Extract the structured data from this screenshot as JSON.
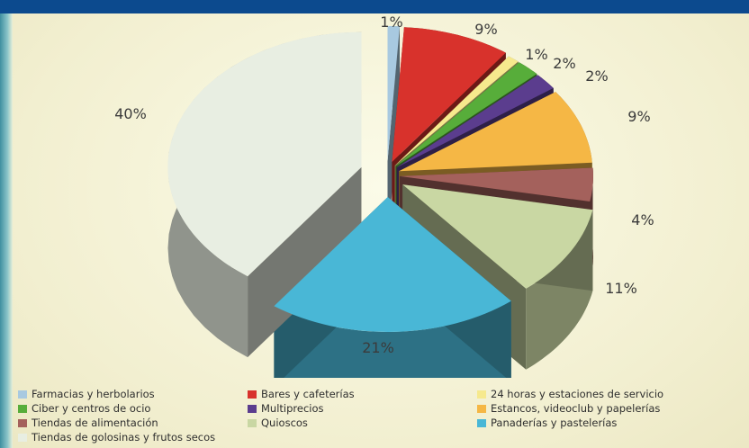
{
  "chart_data": {
    "type": "pie",
    "title": "",
    "slices": [
      {
        "label": "Farmacias y herbolarios",
        "value": 1,
        "display": "1%",
        "color": "#a8c9e0"
      },
      {
        "label": "Bares y cafeterías",
        "value": 9,
        "display": "9%",
        "color": "#d8322c"
      },
      {
        "label": "24 horas y estaciones de servicio",
        "value": 1,
        "display": "1%",
        "color": "#f6e98d"
      },
      {
        "label": "Ciber y centros de ocio",
        "value": 2,
        "display": "2%",
        "color": "#57ad3a"
      },
      {
        "label": "Multiprecios",
        "value": 2,
        "display": "2%",
        "color": "#5b3d8e"
      },
      {
        "label": "Estancos, videoclub y papelerías",
        "value": 9,
        "display": "9%",
        "color": "#f5b745"
      },
      {
        "label": "Tiendas de alimentación",
        "value": 4,
        "display": "4%",
        "color": "#a4615c"
      },
      {
        "label": "Quioscos",
        "value": 11,
        "display": "11%",
        "color": "#c9d7a3"
      },
      {
        "label": "Panaderías y pastelerías",
        "value": 21,
        "display": "21%",
        "color": "#49b7d6"
      },
      {
        "label": "Tiendas de golosinas y frutos secos",
        "value": 40,
        "display": "40%",
        "color": "#e8eee2"
      }
    ],
    "legend_position": "bottom"
  },
  "legend_items": [
    {
      "label": "Farmacias y herbolarios",
      "color": "#a8c9e0"
    },
    {
      "label": "Bares y cafeterías",
      "color": "#d8322c"
    },
    {
      "label": "24 horas y estaciones de servicio",
      "color": "#f6e98d"
    },
    {
      "label": "Ciber y centros de ocio",
      "color": "#57ad3a"
    },
    {
      "label": "Multiprecios",
      "color": "#5b3d8e"
    },
    {
      "label": "Estancos, videoclub y papelerías",
      "color": "#f5b745"
    },
    {
      "label": "Tiendas de alimentación",
      "color": "#a4615c"
    },
    {
      "label": "Quioscos",
      "color": "#c9d7a3"
    },
    {
      "label": "Panaderías y pastelerías",
      "color": "#49b7d6"
    },
    {
      "label": "Tiendas de golosinas y frutos secos",
      "color": "#e8eee2"
    }
  ]
}
